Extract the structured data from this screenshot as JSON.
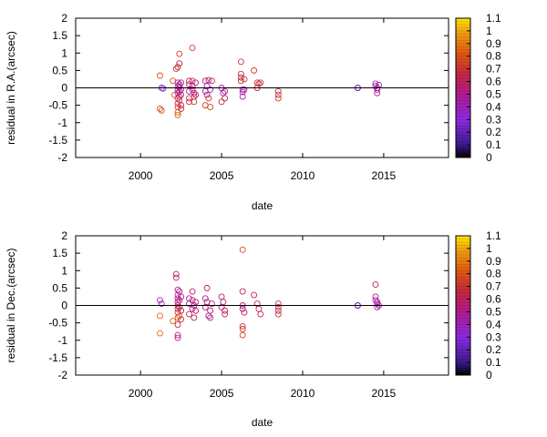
{
  "chart_data": [
    {
      "type": "scatter",
      "xlabel": "date",
      "ylabel": "residual in R.A.(arcsec)",
      "xlim": [
        1996,
        2019
      ],
      "ylim": [
        -2,
        2
      ],
      "x_ticks": [
        "2000",
        "2005",
        "2010",
        "2015"
      ],
      "y_ticks": [
        "-2",
        "-1.5",
        "-1",
        "-0.5",
        "0",
        "0.5",
        "1",
        "1.5",
        "2"
      ],
      "reference_line": 0,
      "grid": false,
      "colorbar": {
        "min": 0,
        "max": 1.1,
        "ticks": [
          "0",
          "0.1",
          "0.2",
          "0.3",
          "0.4",
          "0.5",
          "0.6",
          "0.7",
          "0.8",
          "0.9",
          "1",
          "1.1"
        ]
      },
      "points": [
        {
          "x": 2001.2,
          "y": 0.35,
          "c": 0.78
        },
        {
          "x": 2001.2,
          "y": -0.6,
          "c": 0.78
        },
        {
          "x": 2001.3,
          "y": -0.65,
          "c": 0.8
        },
        {
          "x": 2001.3,
          "y": 0.0,
          "c": 0.35
        },
        {
          "x": 2001.4,
          "y": -0.02,
          "c": 0.3
        },
        {
          "x": 2002.0,
          "y": 0.2,
          "c": 0.8
        },
        {
          "x": 2002.1,
          "y": -0.2,
          "c": 0.85
        },
        {
          "x": 2002.2,
          "y": 0.55,
          "c": 0.72
        },
        {
          "x": 2002.3,
          "y": 0.6,
          "c": 0.68
        },
        {
          "x": 2002.3,
          "y": 0.15,
          "c": 0.45
        },
        {
          "x": 2002.3,
          "y": 0.05,
          "c": 0.4
        },
        {
          "x": 2002.3,
          "y": -0.05,
          "c": 0.5
        },
        {
          "x": 2002.3,
          "y": -0.15,
          "c": 0.42
        },
        {
          "x": 2002.3,
          "y": -0.3,
          "c": 0.6
        },
        {
          "x": 2002.3,
          "y": -0.45,
          "c": 0.7
        },
        {
          "x": 2002.3,
          "y": -0.55,
          "c": 0.72
        },
        {
          "x": 2002.3,
          "y": -0.7,
          "c": 0.8
        },
        {
          "x": 2002.3,
          "y": -0.78,
          "c": 0.82
        },
        {
          "x": 2002.4,
          "y": 0.98,
          "c": 0.72
        },
        {
          "x": 2002.4,
          "y": 0.7,
          "c": 0.6
        },
        {
          "x": 2002.4,
          "y": 0.1,
          "c": 0.5
        },
        {
          "x": 2002.4,
          "y": 0.02,
          "c": 0.45
        },
        {
          "x": 2002.4,
          "y": -0.1,
          "c": 0.55
        },
        {
          "x": 2002.4,
          "y": -0.25,
          "c": 0.65
        },
        {
          "x": 2002.4,
          "y": -0.35,
          "c": 0.7
        },
        {
          "x": 2002.5,
          "y": 0.15,
          "c": 0.5
        },
        {
          "x": 2002.5,
          "y": -0.05,
          "c": 0.48
        },
        {
          "x": 2002.5,
          "y": -0.2,
          "c": 0.52
        },
        {
          "x": 2002.5,
          "y": -0.5,
          "c": 0.62
        },
        {
          "x": 2002.5,
          "y": -0.6,
          "c": 0.7
        },
        {
          "x": 2003.0,
          "y": 0.2,
          "c": 0.6
        },
        {
          "x": 2003.0,
          "y": 0.1,
          "c": 0.55
        },
        {
          "x": 2003.0,
          "y": -0.1,
          "c": 0.45
        },
        {
          "x": 2003.0,
          "y": -0.3,
          "c": 0.6
        },
        {
          "x": 2003.0,
          "y": -0.4,
          "c": 0.7
        },
        {
          "x": 2003.2,
          "y": 1.15,
          "c": 0.72
        },
        {
          "x": 2003.2,
          "y": 0.2,
          "c": 0.6
        },
        {
          "x": 2003.2,
          "y": 0.05,
          "c": 0.55
        },
        {
          "x": 2003.2,
          "y": -0.05,
          "c": 0.5
        },
        {
          "x": 2003.3,
          "y": -0.15,
          "c": 0.55
        },
        {
          "x": 2003.3,
          "y": -0.25,
          "c": 0.62
        },
        {
          "x": 2003.3,
          "y": -0.4,
          "c": 0.7
        },
        {
          "x": 2003.4,
          "y": 0.15,
          "c": 0.55
        },
        {
          "x": 2003.4,
          "y": -0.2,
          "c": 0.6
        },
        {
          "x": 2004.0,
          "y": 0.2,
          "c": 0.5
        },
        {
          "x": 2004.0,
          "y": -0.1,
          "c": 0.45
        },
        {
          "x": 2004.0,
          "y": -0.5,
          "c": 0.75
        },
        {
          "x": 2004.1,
          "y": 0.05,
          "c": 0.4
        },
        {
          "x": 2004.1,
          "y": -0.2,
          "c": 0.5
        },
        {
          "x": 2004.2,
          "y": 0.22,
          "c": 0.6
        },
        {
          "x": 2004.2,
          "y": -0.3,
          "c": 0.7
        },
        {
          "x": 2004.3,
          "y": -0.55,
          "c": 0.75
        },
        {
          "x": 2004.3,
          "y": -0.05,
          "c": 0.45
        },
        {
          "x": 2004.4,
          "y": 0.2,
          "c": 0.55
        },
        {
          "x": 2005.0,
          "y": 0.0,
          "c": 0.4
        },
        {
          "x": 2005.0,
          "y": -0.4,
          "c": 0.7
        },
        {
          "x": 2005.1,
          "y": -0.15,
          "c": 0.45
        },
        {
          "x": 2005.2,
          "y": -0.3,
          "c": 0.65
        },
        {
          "x": 2005.2,
          "y": -0.1,
          "c": 0.5
        },
        {
          "x": 2006.2,
          "y": 0.75,
          "c": 0.72
        },
        {
          "x": 2006.2,
          "y": 0.4,
          "c": 0.7
        },
        {
          "x": 2006.2,
          "y": 0.3,
          "c": 0.68
        },
        {
          "x": 2006.2,
          "y": 0.2,
          "c": 0.65
        },
        {
          "x": 2006.3,
          "y": -0.05,
          "c": 0.35
        },
        {
          "x": 2006.3,
          "y": -0.12,
          "c": 0.4
        },
        {
          "x": 2006.3,
          "y": -0.25,
          "c": 0.45
        },
        {
          "x": 2006.4,
          "y": 0.25,
          "c": 0.7
        },
        {
          "x": 2006.4,
          "y": -0.05,
          "c": 0.5
        },
        {
          "x": 2007.0,
          "y": 0.5,
          "c": 0.75
        },
        {
          "x": 2007.2,
          "y": 0.15,
          "c": 0.7
        },
        {
          "x": 2007.2,
          "y": 0.0,
          "c": 0.6
        },
        {
          "x": 2007.3,
          "y": 0.12,
          "c": 0.68
        },
        {
          "x": 2007.4,
          "y": 0.15,
          "c": 0.72
        },
        {
          "x": 2008.5,
          "y": -0.1,
          "c": 0.65
        },
        {
          "x": 2008.5,
          "y": -0.2,
          "c": 0.7
        },
        {
          "x": 2008.5,
          "y": -0.3,
          "c": 0.72
        },
        {
          "x": 2013.4,
          "y": 0.0,
          "c": 0.0
        },
        {
          "x": 2013.4,
          "y": 0.0,
          "c": 0.3
        },
        {
          "x": 2014.5,
          "y": 0.12,
          "c": 0.45
        },
        {
          "x": 2014.5,
          "y": 0.05,
          "c": 0.4
        },
        {
          "x": 2014.6,
          "y": 0.0,
          "c": 0.35
        },
        {
          "x": 2014.6,
          "y": -0.05,
          "c": 0.42
        },
        {
          "x": 2014.6,
          "y": -0.15,
          "c": 0.5
        },
        {
          "x": 2014.7,
          "y": 0.08,
          "c": 0.45
        }
      ]
    },
    {
      "type": "scatter",
      "xlabel": "date",
      "ylabel": "residual in Dec.(arcsec)",
      "xlim": [
        1996,
        2019
      ],
      "ylim": [
        -2,
        2
      ],
      "x_ticks": [
        "2000",
        "2005",
        "2010",
        "2015"
      ],
      "y_ticks": [
        "-2",
        "-1.5",
        "-1",
        "-0.5",
        "0",
        "0.5",
        "1",
        "1.5",
        "2"
      ],
      "reference_line": 0,
      "grid": false,
      "colorbar": {
        "min": 0,
        "max": 1.1,
        "ticks": [
          "0",
          "0.1",
          "0.2",
          "0.3",
          "0.4",
          "0.5",
          "0.6",
          "0.7",
          "0.8",
          "0.9",
          "1",
          "1.1"
        ]
      },
      "points": [
        {
          "x": 2001.2,
          "y": 0.15,
          "c": 0.45
        },
        {
          "x": 2001.2,
          "y": -0.3,
          "c": 0.85
        },
        {
          "x": 2001.2,
          "y": -0.8,
          "c": 0.85
        },
        {
          "x": 2001.3,
          "y": 0.05,
          "c": 0.4
        },
        {
          "x": 2002.0,
          "y": -0.45,
          "c": 0.85
        },
        {
          "x": 2002.2,
          "y": 0.9,
          "c": 0.6
        },
        {
          "x": 2002.2,
          "y": 0.8,
          "c": 0.55
        },
        {
          "x": 2002.3,
          "y": 0.45,
          "c": 0.5
        },
        {
          "x": 2002.3,
          "y": 0.3,
          "c": 0.5
        },
        {
          "x": 2002.3,
          "y": 0.2,
          "c": 0.45
        },
        {
          "x": 2002.3,
          "y": 0.1,
          "c": 0.55
        },
        {
          "x": 2002.3,
          "y": 0.0,
          "c": 0.6
        },
        {
          "x": 2002.3,
          "y": -0.1,
          "c": 0.65
        },
        {
          "x": 2002.3,
          "y": -0.2,
          "c": 0.7
        },
        {
          "x": 2002.3,
          "y": -0.35,
          "c": 0.75
        },
        {
          "x": 2002.3,
          "y": -0.55,
          "c": 0.6
        },
        {
          "x": 2002.3,
          "y": -0.85,
          "c": 0.55
        },
        {
          "x": 2002.3,
          "y": -0.93,
          "c": 0.5
        },
        {
          "x": 2002.4,
          "y": 0.4,
          "c": 0.5
        },
        {
          "x": 2002.4,
          "y": 0.15,
          "c": 0.55
        },
        {
          "x": 2002.4,
          "y": -0.05,
          "c": 0.62
        },
        {
          "x": 2002.4,
          "y": -0.3,
          "c": 0.8
        },
        {
          "x": 2002.5,
          "y": 0.25,
          "c": 0.5
        },
        {
          "x": 2002.5,
          "y": -0.15,
          "c": 0.6
        },
        {
          "x": 2002.5,
          "y": -0.4,
          "c": 0.7
        },
        {
          "x": 2003.0,
          "y": 0.2,
          "c": 0.5
        },
        {
          "x": 2003.0,
          "y": 0.05,
          "c": 0.45
        },
        {
          "x": 2003.0,
          "y": -0.25,
          "c": 0.6
        },
        {
          "x": 2003.2,
          "y": 0.4,
          "c": 0.6
        },
        {
          "x": 2003.2,
          "y": 0.15,
          "c": 0.55
        },
        {
          "x": 2003.2,
          "y": -0.1,
          "c": 0.5
        },
        {
          "x": 2003.3,
          "y": -0.35,
          "c": 0.6
        },
        {
          "x": 2003.3,
          "y": 0.0,
          "c": 0.5
        },
        {
          "x": 2003.4,
          "y": 0.1,
          "c": 0.55
        },
        {
          "x": 2003.4,
          "y": -0.15,
          "c": 0.55
        },
        {
          "x": 2004.0,
          "y": 0.2,
          "c": 0.5
        },
        {
          "x": 2004.0,
          "y": -0.05,
          "c": 0.5
        },
        {
          "x": 2004.1,
          "y": 0.5,
          "c": 0.6
        },
        {
          "x": 2004.1,
          "y": 0.1,
          "c": 0.55
        },
        {
          "x": 2004.2,
          "y": -0.3,
          "c": 0.5
        },
        {
          "x": 2004.3,
          "y": -0.15,
          "c": 0.6
        },
        {
          "x": 2004.3,
          "y": -0.35,
          "c": 0.5
        },
        {
          "x": 2004.4,
          "y": 0.05,
          "c": 0.55
        },
        {
          "x": 2005.0,
          "y": 0.25,
          "c": 0.6
        },
        {
          "x": 2005.0,
          "y": -0.05,
          "c": 0.5
        },
        {
          "x": 2005.1,
          "y": 0.1,
          "c": 0.55
        },
        {
          "x": 2005.2,
          "y": -0.15,
          "c": 0.6
        },
        {
          "x": 2005.2,
          "y": -0.25,
          "c": 0.65
        },
        {
          "x": 2006.3,
          "y": 1.6,
          "c": 0.78
        },
        {
          "x": 2006.3,
          "y": 0.4,
          "c": 0.6
        },
        {
          "x": 2006.3,
          "y": 0.0,
          "c": 0.55
        },
        {
          "x": 2006.3,
          "y": -0.1,
          "c": 0.5
        },
        {
          "x": 2006.3,
          "y": -0.6,
          "c": 0.7
        },
        {
          "x": 2006.3,
          "y": -0.68,
          "c": 0.72
        },
        {
          "x": 2006.3,
          "y": -0.85,
          "c": 0.75
        },
        {
          "x": 2006.4,
          "y": -0.2,
          "c": 0.6
        },
        {
          "x": 2007.0,
          "y": 0.3,
          "c": 0.65
        },
        {
          "x": 2007.2,
          "y": 0.05,
          "c": 0.6
        },
        {
          "x": 2007.3,
          "y": -0.1,
          "c": 0.6
        },
        {
          "x": 2007.4,
          "y": -0.25,
          "c": 0.65
        },
        {
          "x": 2008.5,
          "y": 0.05,
          "c": 0.65
        },
        {
          "x": 2008.5,
          "y": -0.05,
          "c": 0.6
        },
        {
          "x": 2008.5,
          "y": -0.15,
          "c": 0.65
        },
        {
          "x": 2008.5,
          "y": -0.25,
          "c": 0.7
        },
        {
          "x": 2013.4,
          "y": 0.0,
          "c": 0.0
        },
        {
          "x": 2013.4,
          "y": 0.0,
          "c": 0.3
        },
        {
          "x": 2014.5,
          "y": 0.6,
          "c": 0.55
        },
        {
          "x": 2014.5,
          "y": 0.25,
          "c": 0.5
        },
        {
          "x": 2014.5,
          "y": 0.15,
          "c": 0.45
        },
        {
          "x": 2014.6,
          "y": 0.1,
          "c": 0.45
        },
        {
          "x": 2014.6,
          "y": 0.05,
          "c": 0.4
        },
        {
          "x": 2014.6,
          "y": -0.05,
          "c": 0.45
        },
        {
          "x": 2014.7,
          "y": 0.0,
          "c": 0.5
        }
      ]
    }
  ]
}
